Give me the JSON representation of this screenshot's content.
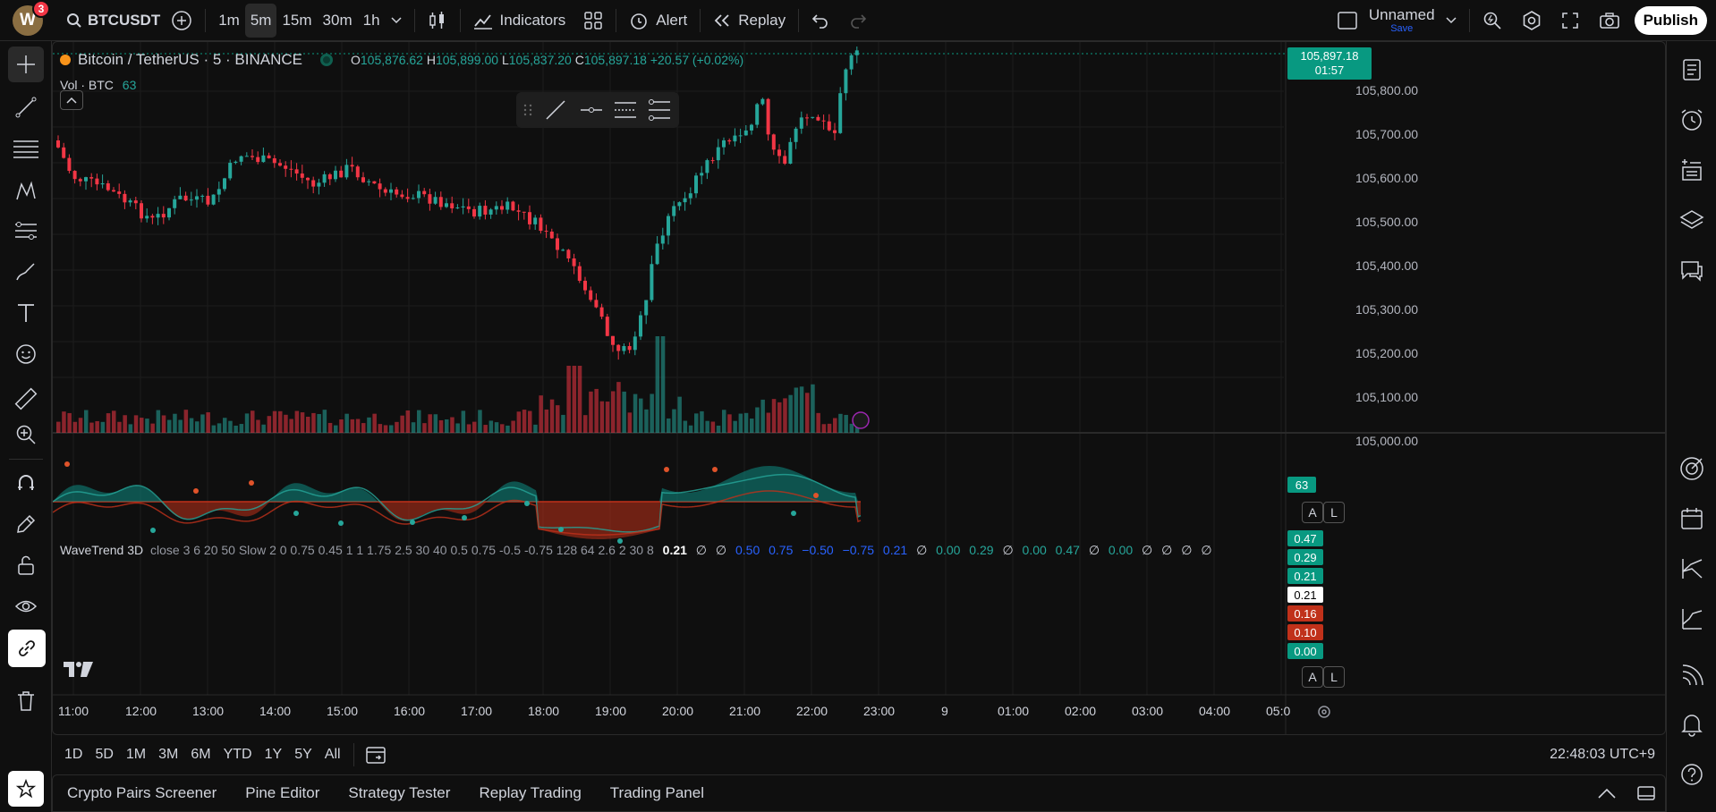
{
  "topbar": {
    "avatar_letter": "W",
    "notifications": "3",
    "symbol": "BTCUSDT",
    "intervals": [
      "1m",
      "5m",
      "15m",
      "30m",
      "1h"
    ],
    "selected_interval": "5m",
    "indicators_label": "Indicators",
    "alert_label": "Alert",
    "replay_label": "Replay",
    "layout_name": "Unnamed",
    "save_label": "Save",
    "publish_label": "Publish"
  },
  "legend": {
    "title": "Bitcoin / TetherUS · 5 · BINANCE",
    "open_label": "O",
    "open": "105,876.62",
    "high_label": "H",
    "high": "105,899.00",
    "low_label": "L",
    "low": "105,837.20",
    "close_label": "C",
    "close": "105,897.18",
    "change": "+20.57 (+0.02%)",
    "vol_label": "Vol · BTC",
    "vol_value": "63"
  },
  "price_axis": {
    "labels": [
      "105,800.00",
      "105,700.00",
      "105,600.00",
      "105,500.00",
      "105,400.00",
      "105,300.00",
      "105,200.00",
      "105,100.00",
      "105,000.00"
    ],
    "current_price": "105,897.18",
    "countdown": "01:57",
    "vol_tag": "63"
  },
  "wavetrend": {
    "name": "WaveTrend 3D",
    "params": "close 3 6 20 50 Slow 2 0 0.75 0.45 1 1 1.75 2.5 30 40 0.5 0.75 -0.5 -0.75 128 64 2.6 2 30 8",
    "values": [
      "0.21",
      "∅",
      "∅",
      "0.50",
      "0.75",
      "−0.50",
      "−0.75",
      "0.21",
      "∅",
      "0.00",
      "0.29",
      "∅",
      "0.00",
      "0.47",
      "∅",
      "0.00",
      "∅",
      "∅",
      "∅",
      "∅"
    ],
    "axis_tags": [
      "0.47",
      "0.29",
      "0.21",
      "0.21",
      "0.16",
      "0.10",
      "0.00"
    ]
  },
  "time_axis": [
    "11:00",
    "12:00",
    "13:00",
    "14:00",
    "15:00",
    "16:00",
    "17:00",
    "18:00",
    "19:00",
    "20:00",
    "21:00",
    "22:00",
    "23:00",
    "9",
    "01:00",
    "02:00",
    "03:00",
    "04:00",
    "05:0"
  ],
  "range_bar": {
    "ranges": [
      "1D",
      "5D",
      "1M",
      "3M",
      "6M",
      "YTD",
      "1Y",
      "5Y",
      "All"
    ],
    "clock": "22:48:03 UTC+9"
  },
  "bottom_tabs": [
    "Crypto Pairs Screener",
    "Pine Editor",
    "Strategy Tester",
    "Replay Trading",
    "Trading Panel"
  ],
  "scale_buttons": {
    "auto": "A",
    "log": "L"
  },
  "colors": {
    "up": "#26a69a",
    "down": "#f23645",
    "bg": "#0f0f0f",
    "wt_up": "#0e8c84",
    "wt_down": "#c0311a"
  }
}
